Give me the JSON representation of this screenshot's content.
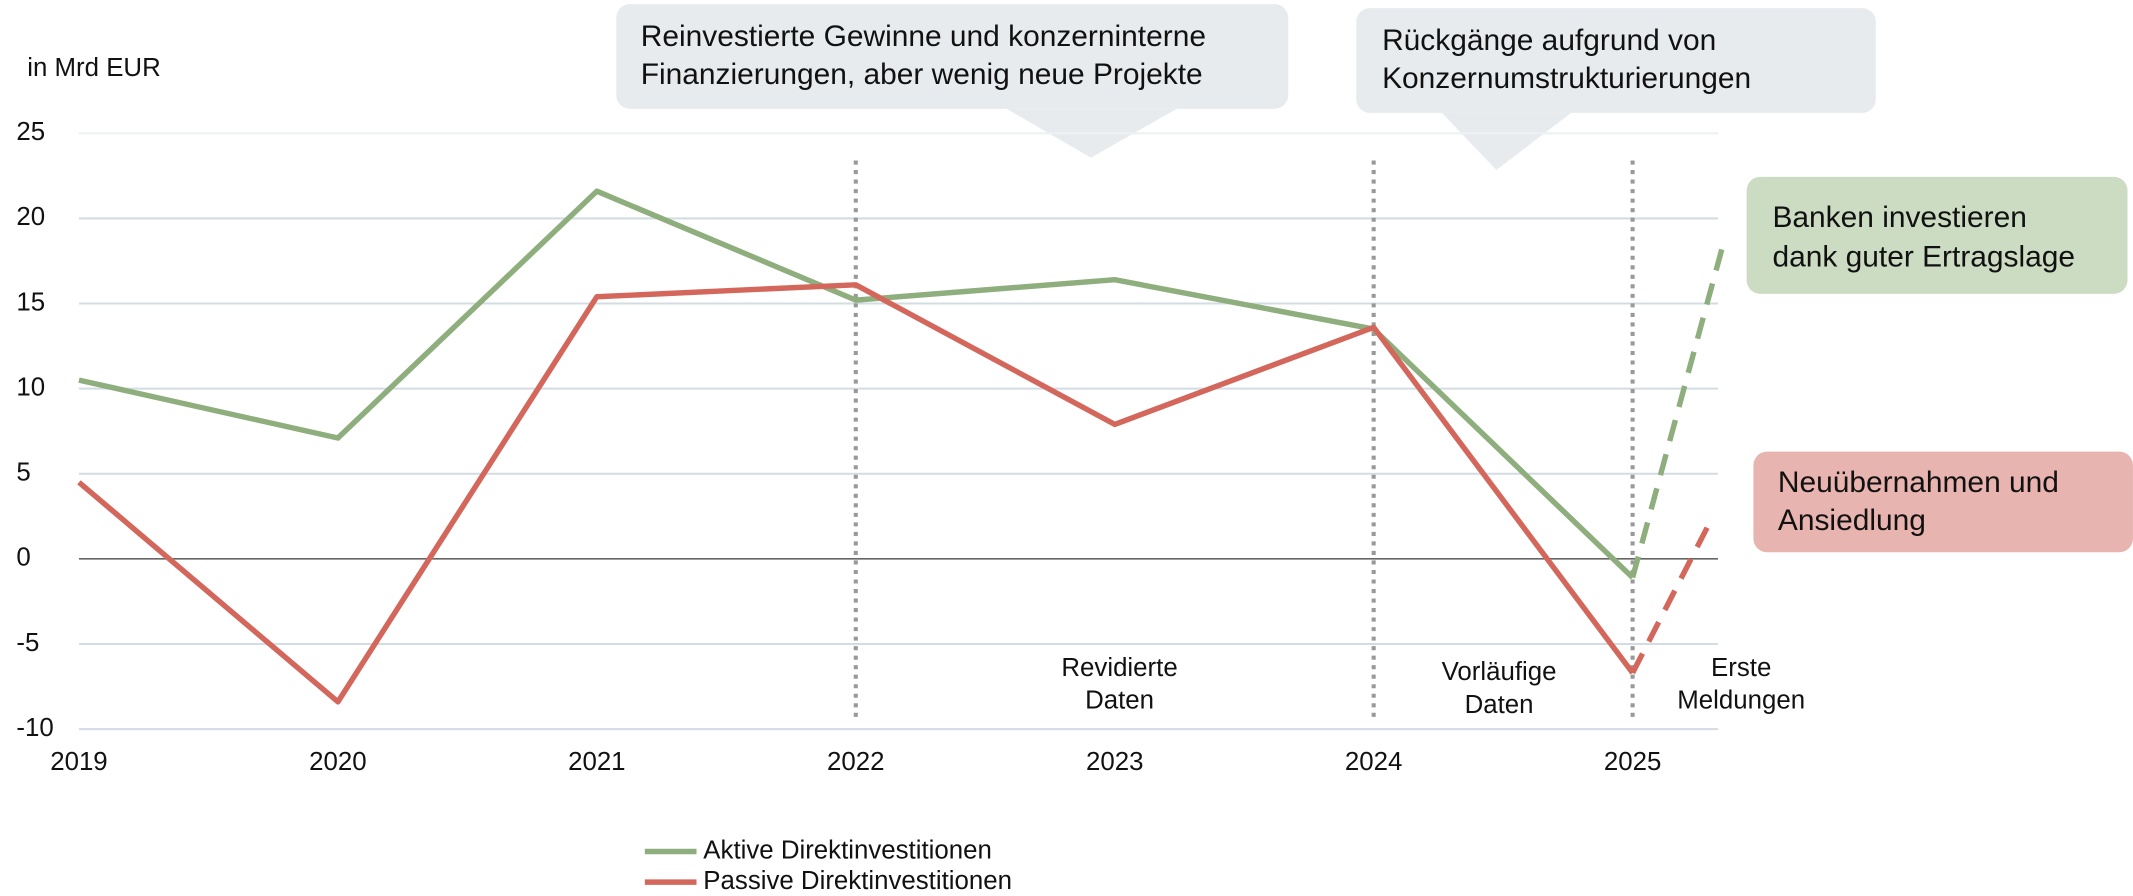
{
  "chart_data": {
    "type": "line",
    "y_unit_label": "in Mrd EUR",
    "x": [
      2019,
      2020,
      2021,
      2022,
      2023,
      2024,
      2025
    ],
    "xticks": [
      2019,
      2020,
      2021,
      2022,
      2023,
      2024,
      2025
    ],
    "xlim": [
      2019,
      2025.33
    ],
    "ylim": [
      -10,
      25
    ],
    "yticks": [
      -10,
      -5,
      0,
      5,
      10,
      15,
      20,
      25
    ],
    "grid": true,
    "period_boundaries": [
      2022,
      2024,
      2025
    ],
    "period_labels": [
      [
        "Revidierte",
        "Daten"
      ],
      [
        "Vorläufige",
        "Daten"
      ],
      [
        "Erste",
        "Meldungen"
      ]
    ],
    "series": [
      {
        "name": "Aktive Direktinvestitionen",
        "color": "#8fae7e",
        "values": [
          10.5,
          7.1,
          21.6,
          15.2,
          16.4,
          13.5,
          -1.1
        ],
        "forecast_x": 2025.35,
        "forecast_value": 18.5
      },
      {
        "name": "Passive Direktinvestitionen",
        "color": "#d4675c",
        "values": [
          4.5,
          -8.4,
          15.4,
          16.1,
          7.9,
          13.6,
          -6.7
        ],
        "forecast_x": 2025.29,
        "forecast_value": 1.9
      }
    ],
    "callouts": [
      [
        "Reinvestierte Gewinne und konzerninterne",
        "Finanzierungen, aber wenig neue Projekte"
      ],
      [
        "Rückgänge aufgrund von",
        "Konzernumstrukturierungen"
      ],
      [
        "Banken investieren",
        "dank guter Ertragslage"
      ],
      [
        "Neuübernahmen und",
        "Ansiedlung"
      ]
    ]
  }
}
